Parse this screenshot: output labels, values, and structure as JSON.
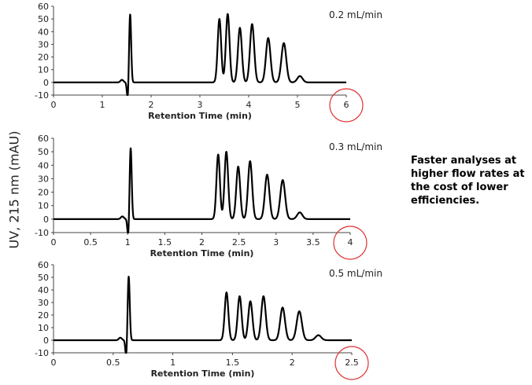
{
  "y_axis_label": "UV, 215 nm (mAU)",
  "annotation": "Faster analyses at higher flow rates at the cost of lower efficiencies.",
  "highlight_color": "#e03030",
  "chart_data": [
    {
      "type": "line",
      "flow_label": "0.2 mL/min",
      "xlabel": "Retention Time (min)",
      "xlim": [
        0,
        6
      ],
      "ylim": [
        -10,
        60
      ],
      "xticks": [
        "0",
        "1",
        "2",
        "3",
        "4",
        "5",
        "6"
      ],
      "yticks": [
        "60",
        "50",
        "40",
        "30",
        "20",
        "10",
        "0",
        "-10"
      ],
      "highlighted_tick": "6",
      "void_peak": {
        "time": 1.57,
        "height": 54
      },
      "peaks": [
        {
          "time": 3.4,
          "height": 50
        },
        {
          "time": 3.57,
          "height": 54
        },
        {
          "time": 3.82,
          "height": 43
        },
        {
          "time": 4.07,
          "height": 46
        },
        {
          "time": 4.4,
          "height": 35
        },
        {
          "time": 4.72,
          "height": 31
        },
        {
          "time": 5.05,
          "height": 5
        }
      ]
    },
    {
      "type": "line",
      "flow_label": "0.3 mL/min",
      "xlabel": "Retention Time (min)",
      "xlim": [
        0,
        4
      ],
      "ylim": [
        -10,
        60
      ],
      "xticks": [
        "0",
        "0.5",
        "1",
        "1.5",
        "2",
        "2.5",
        "3",
        "3.5",
        "4"
      ],
      "yticks": [
        "60",
        "50",
        "40",
        "30",
        "20",
        "10",
        "0",
        "-10"
      ],
      "highlighted_tick": "4",
      "void_peak": {
        "time": 1.04,
        "height": 53
      },
      "peaks": [
        {
          "time": 2.22,
          "height": 48
        },
        {
          "time": 2.33,
          "height": 50
        },
        {
          "time": 2.49,
          "height": 39
        },
        {
          "time": 2.65,
          "height": 43
        },
        {
          "time": 2.88,
          "height": 33
        },
        {
          "time": 3.09,
          "height": 29
        },
        {
          "time": 3.32,
          "height": 5
        }
      ]
    },
    {
      "type": "line",
      "flow_label": "0.5 mL/min",
      "xlabel": "Retention Time (min)",
      "xlim": [
        0,
        2.5
      ],
      "ylim": [
        -10,
        60
      ],
      "xticks": [
        "0",
        "0.5",
        "1",
        "1.5",
        "2",
        "2.5"
      ],
      "yticks": [
        "60",
        "50",
        "40",
        "30",
        "20",
        "10",
        "0",
        "-10"
      ],
      "highlighted_tick": "2.5",
      "void_peak": {
        "time": 0.63,
        "height": 51
      },
      "peaks": [
        {
          "time": 1.45,
          "height": 38
        },
        {
          "time": 1.56,
          "height": 35
        },
        {
          "time": 1.65,
          "height": 31
        },
        {
          "time": 1.76,
          "height": 35
        },
        {
          "time": 1.92,
          "height": 26
        },
        {
          "time": 2.06,
          "height": 23
        },
        {
          "time": 2.22,
          "height": 4
        }
      ]
    }
  ]
}
